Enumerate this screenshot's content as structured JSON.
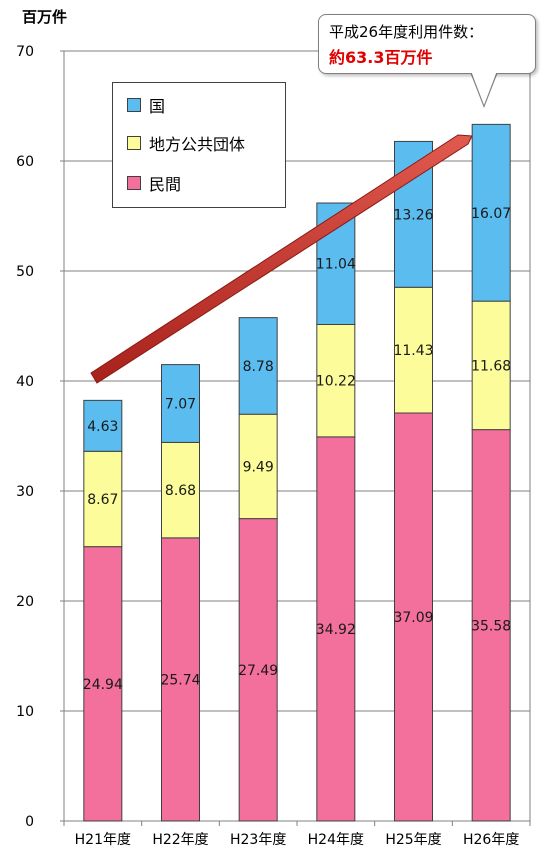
{
  "unit_label": "百万件",
  "callout": {
    "line1": "平成26年度利用件数：",
    "line2": "約63.3百万件"
  },
  "colors": {
    "国": "#5bbcf0",
    "地方公共団体": "#fcfc9a",
    "民間": "#f36f9c",
    "arrow": "#c0302a"
  },
  "chart_data": {
    "type": "bar",
    "stacked": true,
    "categories": [
      "H21年度",
      "H22年度",
      "H23年度",
      "H24年度",
      "H25年度",
      "H26年度"
    ],
    "series": [
      {
        "name": "民間",
        "values": [
          24.94,
          25.74,
          27.49,
          34.92,
          37.09,
          35.58
        ]
      },
      {
        "name": "地方公共団体",
        "values": [
          8.67,
          8.68,
          9.49,
          10.22,
          11.43,
          11.68
        ]
      },
      {
        "name": "国",
        "values": [
          4.63,
          7.07,
          8.78,
          11.04,
          13.26,
          16.07
        ]
      }
    ],
    "yticks": [
      0,
      10,
      20,
      30,
      40,
      50,
      60,
      70
    ],
    "ylim": [
      0,
      70
    ],
    "ylabel": "百万件",
    "grid": true,
    "legend_position": "top-left",
    "legend_order": [
      "国",
      "地方公共団体",
      "民間"
    ],
    "annotation": "平成26年度利用件数：約63.3百万件"
  }
}
